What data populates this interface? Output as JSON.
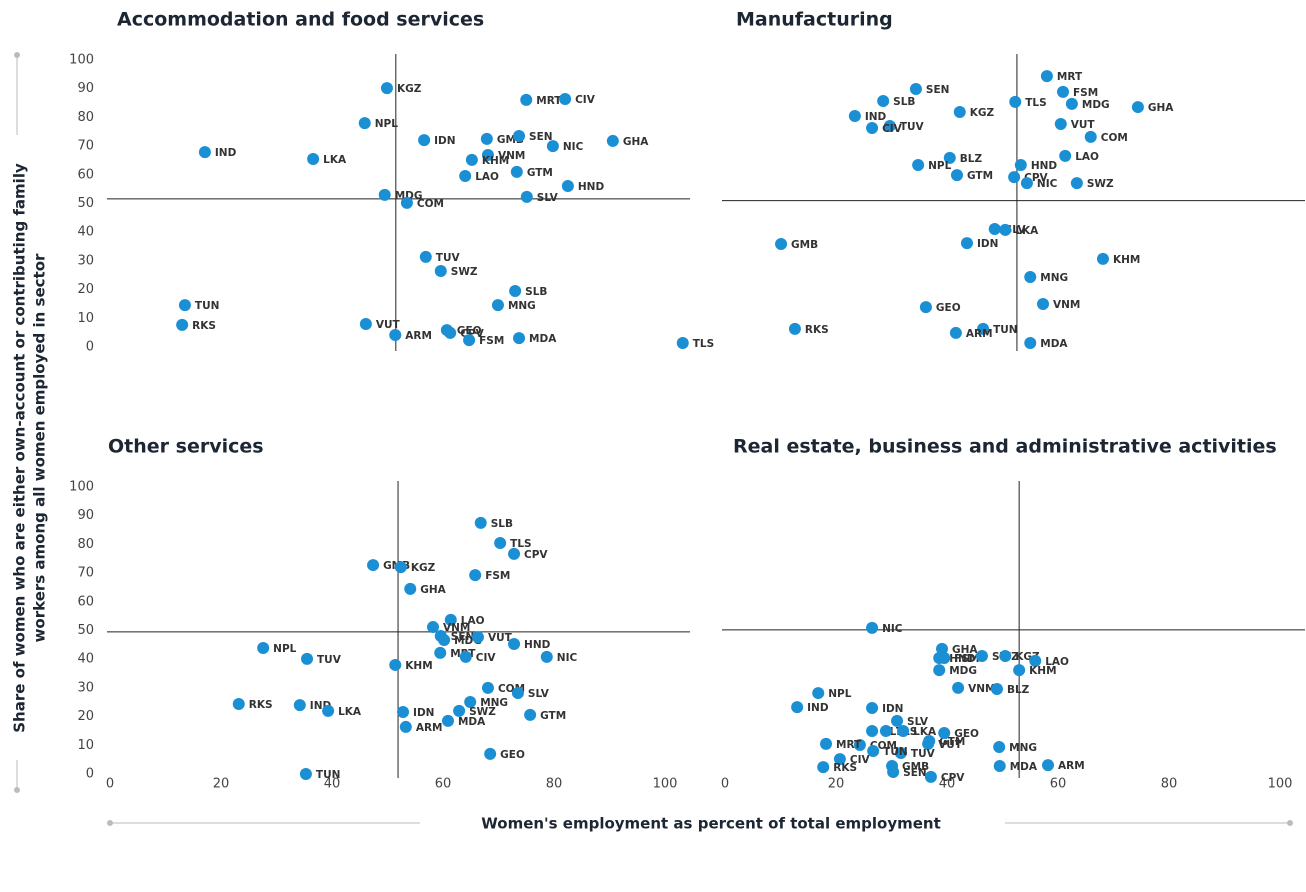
{
  "y_label": [
    "Share of women who are either own-account or contributing family",
    "workers among all women employed in sector"
  ],
  "x_label": "Women's employment as percent of total employment",
  "chart_data": [
    {
      "type": "scatter",
      "title": "Accommodation and food services",
      "color": "#1b8fd4",
      "xlim": [
        0,
        100
      ],
      "ylim": [
        0,
        100
      ],
      "yticks": [
        0,
        10,
        20,
        30,
        40,
        50,
        60,
        70,
        80,
        90,
        100
      ],
      "vline": 51.5,
      "hline": 51.6,
      "labels": [
        "KGZ",
        "MRT",
        "CIV",
        "NPL",
        "IDN",
        "GMB",
        "SEN",
        "NIC",
        "GHA",
        "IND",
        "LKA",
        "VNM",
        "KHM",
        "GTM",
        "LAO",
        "HND",
        "MDG",
        "SLV",
        "COM",
        "TUV",
        "SWZ",
        "SLB",
        "TUN",
        "MNG",
        "VUT",
        "RKS",
        "GEO",
        "ARM",
        "CPV",
        "FSM",
        "MDA",
        "TLS"
      ],
      "x": [
        49.9,
        75.0,
        82.0,
        45.9,
        56.6,
        67.9,
        73.7,
        79.8,
        90.6,
        17.1,
        36.6,
        68.1,
        65.2,
        73.3,
        64.0,
        82.5,
        49.5,
        75.1,
        53.5,
        56.9,
        59.6,
        73.0,
        13.5,
        69.9,
        46.1,
        13.0,
        60.7,
        51.4,
        61.3,
        64.7,
        73.7,
        103.2
      ],
      "y": [
        90.2,
        86.1,
        86.4,
        78.0,
        72.1,
        72.5,
        73.5,
        70.0,
        71.8,
        67.9,
        65.5,
        66.9,
        65.2,
        61.0,
        59.6,
        56.1,
        53.0,
        52.3,
        50.2,
        31.4,
        26.5,
        19.5,
        14.6,
        14.6,
        8.0,
        7.7,
        5.9,
        4.2,
        4.9,
        2.4,
        3.1,
        1.4
      ]
    },
    {
      "type": "scatter",
      "title": "Manufacturing",
      "color": "#1b8fd4",
      "xlim": [
        0,
        100
      ],
      "ylim": [
        0,
        100
      ],
      "vline": 52.6,
      "hline": 51.0,
      "labels": [
        "MRT",
        "SEN",
        "FSM",
        "SLB",
        "TLS",
        "MDG",
        "GHA",
        "KGZ",
        "IND",
        "TUV",
        "VUT",
        "CIV",
        "COM",
        "LAO",
        "BLZ",
        "HND",
        "NPL",
        "GTM",
        "CPV",
        "NIC",
        "SWZ",
        "SLV",
        "LKA",
        "GMB",
        "IDN",
        "KHM",
        "MNG",
        "GEO",
        "VNM",
        "RKS",
        "TUN",
        "ARM",
        "MDA"
      ],
      "x": [
        58.0,
        34.4,
        60.9,
        28.5,
        52.3,
        62.5,
        74.4,
        42.3,
        23.4,
        29.7,
        60.5,
        26.5,
        65.9,
        61.3,
        40.5,
        53.3,
        34.8,
        41.8,
        52.1,
        54.4,
        63.4,
        48.6,
        50.5,
        10.1,
        43.6,
        68.1,
        55.0,
        36.2,
        57.3,
        12.6,
        46.5,
        41.6,
        55.0
      ],
      "y": [
        94.4,
        89.9,
        88.9,
        85.7,
        85.4,
        84.7,
        83.6,
        81.9,
        80.5,
        77.0,
        77.7,
        76.3,
        73.2,
        66.6,
        65.9,
        63.4,
        63.4,
        59.9,
        59.2,
        57.1,
        57.1,
        41.1,
        40.8,
        35.9,
        36.2,
        30.7,
        24.4,
        13.9,
        15.0,
        6.3,
        6.3,
        4.9,
        1.4
      ]
    },
    {
      "type": "scatter",
      "title": "Other services",
      "color": "#1b8fd4",
      "xlim": [
        0,
        100
      ],
      "ylim": [
        0,
        100
      ],
      "xticks": [
        0,
        20,
        40,
        60,
        80,
        100
      ],
      "yticks": [
        0,
        10,
        20,
        30,
        40,
        50,
        60,
        70,
        80,
        90,
        100
      ],
      "vline": 51.9,
      "hline": 49.5,
      "labels": [
        "SLB",
        "TLS",
        "CPV",
        "GMB",
        "KGZ",
        "FSM",
        "GHA",
        "LAO",
        "VNM",
        "SEN",
        "MDG",
        "VUT",
        "HND",
        "NPL",
        "MRT",
        "TUV",
        "NIC",
        "CIV",
        "KHM",
        "COM",
        "SLV",
        "MNG",
        "RKS",
        "IND",
        "SWZ",
        "LKA",
        "IDN",
        "GTM",
        "MDA",
        "ARM",
        "GEO",
        "TUN"
      ],
      "x": [
        66.8,
        70.3,
        72.8,
        47.4,
        52.4,
        65.8,
        54.1,
        61.4,
        58.2,
        59.6,
        60.2,
        66.3,
        72.8,
        27.6,
        59.5,
        35.5,
        78.7,
        64.1,
        51.4,
        68.1,
        73.5,
        64.9,
        23.2,
        34.2,
        62.9,
        39.3,
        52.8,
        75.7,
        60.9,
        53.3,
        68.5,
        35.3
      ],
      "y": [
        87.5,
        80.5,
        76.7,
        72.8,
        72.1,
        69.3,
        64.5,
        53.7,
        51.2,
        48.1,
        46.7,
        47.7,
        45.3,
        43.9,
        42.2,
        40.1,
        40.8,
        40.8,
        38.0,
        30.0,
        28.2,
        25.1,
        24.4,
        24.0,
        22.0,
        22.0,
        21.6,
        20.6,
        18.5,
        16.4,
        7.0,
        0
      ]
    },
    {
      "type": "scatter",
      "title": "Real estate, business and administrative activities",
      "color": "#1b8fd4",
      "xlim": [
        0,
        100
      ],
      "ylim": [
        0,
        100
      ],
      "xticks": [
        0,
        20,
        40,
        60,
        80,
        100
      ],
      "vline": 53.0,
      "hline": 50.2,
      "labels": [
        "NIC",
        "GHA",
        "HND",
        "FSM",
        "SWZ",
        "KGZ",
        "LAO",
        "MDG",
        "KHM",
        "NPL",
        "VNM",
        "BLZ",
        "IND",
        "IDN",
        "SLV",
        "SLB",
        "TLS",
        "LKA",
        "GTM",
        "COM",
        "VUT",
        "GEO",
        "MRT",
        "CIV",
        "RKS",
        "MNG",
        "TUV",
        "TUN",
        "GMB",
        "SEN",
        "CPV",
        "MDA",
        "ARM"
      ],
      "x": [
        26.5,
        39.1,
        38.6,
        39.5,
        46.3,
        50.5,
        55.9,
        38.6,
        53.0,
        16.8,
        42.0,
        49.0,
        13.0,
        26.5,
        31.0,
        26.5,
        29.0,
        32.1,
        36.8,
        24.3,
        36.6,
        39.5,
        18.2,
        20.7,
        17.7,
        49.4,
        31.7,
        26.7,
        30.1,
        30.3,
        37.1,
        49.5,
        58.2
      ],
      "y": [
        50.9,
        43.6,
        40.4,
        40.4,
        41.1,
        41.1,
        39.4,
        36.2,
        36.2,
        28.2,
        30.0,
        29.6,
        23.3,
        23.0,
        18.5,
        15.0,
        15.0,
        15.0,
        11.5,
        10.1,
        10.5,
        14.3,
        10.5,
        5.2,
        2.4,
        9.4,
        7.3,
        8.0,
        2.8,
        0.7,
        -1.0,
        2.8,
        3.1
      ]
    }
  ]
}
